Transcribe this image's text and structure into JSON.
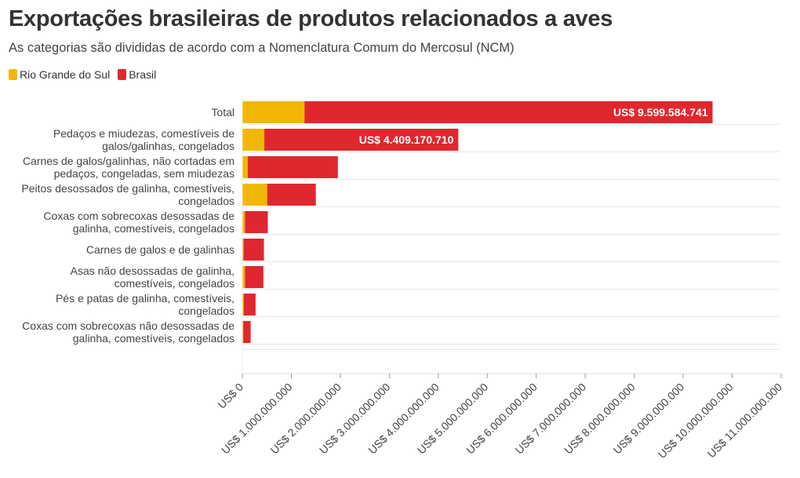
{
  "chart_data": {
    "type": "bar",
    "orientation": "horizontal",
    "stacked": "overlay",
    "title": "Exportações brasileiras de produtos relacionados a aves",
    "subtitle": "As categorias são divididas de acordo com a Nomenclatura Comum do Mercosul (NCM)",
    "categories": [
      [
        "Total"
      ],
      [
        "Pedaços e miudezas, comestíveis de",
        "galos/galinhas, congelados"
      ],
      [
        "Carnes de galos/galinhas, não cortadas em",
        "pedaços, congeladas, sem miudezas"
      ],
      [
        "Peitos desossados de galinha, comestíveis,",
        "congelados"
      ],
      [
        "Coxas com sobrecoxas desossadas de",
        "galinha, comestíveis, congelados"
      ],
      [
        "Carnes de galos e de galinhas"
      ],
      [
        "Asas não desossadas de galinha,",
        "comestíveis, congelados"
      ],
      [
        "Pés e patas de galinha, comestíveis,",
        "congelados"
      ],
      [
        "Coxas com sobrecoxas não desossadas de",
        "galinha, comestíveis, congelados"
      ]
    ],
    "series": [
      {
        "name": "Rio Grande do Sul",
        "color": "#f2b705",
        "values": [
          1270000000,
          450000000,
          110000000,
          510000000,
          55000000,
          25000000,
          55000000,
          30000000,
          20000000
        ]
      },
      {
        "name": "Brasil",
        "color": "#e0272f",
        "values": [
          9599584741,
          4409170710,
          1950000000,
          1500000000,
          520000000,
          440000000,
          430000000,
          270000000,
          170000000
        ]
      }
    ],
    "data_labels": [
      "US$ 9.599.584.741",
      "US$ 4.409.170.710"
    ],
    "xlim": [
      0,
      11000000000
    ],
    "xticks": [
      0,
      1000000000,
      2000000000,
      3000000000,
      4000000000,
      5000000000,
      6000000000,
      7000000000,
      8000000000,
      9000000000,
      10000000000,
      11000000000
    ],
    "xtick_labels": [
      "US$ 0",
      "US$ 1.000.000.000",
      "US$ 2.000.000.000",
      "US$ 3.000.000.000",
      "US$ 4.000.000.000",
      "US$ 5.000.000.000",
      "US$ 6.000.000.000",
      "US$ 7.000.000.000",
      "US$ 8.000.000.000",
      "US$ 9.000.000.000",
      "US$ 10.000.000.000",
      "US$ 11.000.000.000"
    ],
    "legend_position": "top-left",
    "grid": "horizontal-row-lines"
  }
}
